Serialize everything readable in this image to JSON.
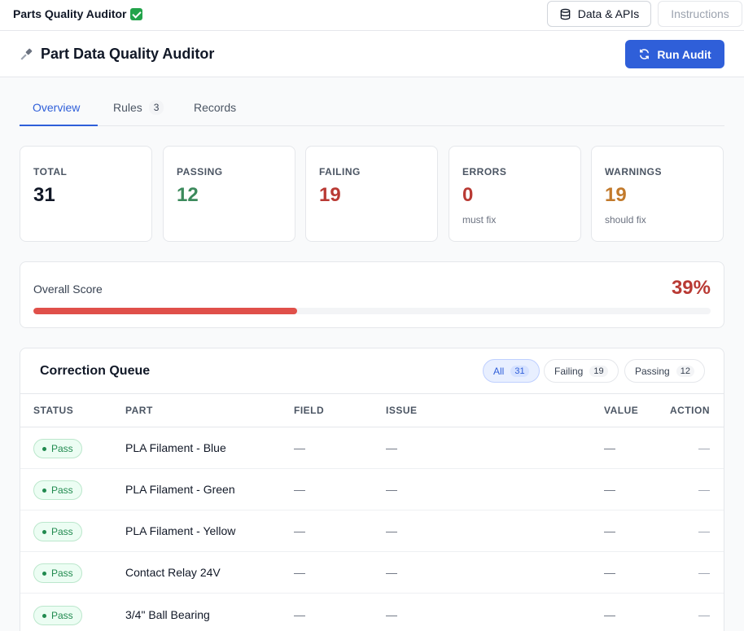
{
  "topbar": {
    "app_title": "Parts Quality Auditor",
    "data_button": "Data & APIs",
    "instructions_button": "Instructions"
  },
  "header": {
    "title": "Part Data Quality Auditor",
    "run_button": "Run Audit"
  },
  "tabs": [
    {
      "label": "Overview",
      "active": true
    },
    {
      "label": "Rules",
      "count": "3"
    },
    {
      "label": "Records"
    }
  ],
  "stats": {
    "total": {
      "label": "TOTAL",
      "value": "31"
    },
    "passing": {
      "label": "PASSING",
      "value": "12"
    },
    "failing": {
      "label": "FAILING",
      "value": "19"
    },
    "errors": {
      "label": "ERRORS",
      "value": "0",
      "sub": "must fix"
    },
    "warnings": {
      "label": "WARNINGS",
      "value": "19",
      "sub": "should fix"
    }
  },
  "score": {
    "label": "Overall Score",
    "value": "39%",
    "fraction": 0.39
  },
  "queue": {
    "title": "Correction Queue",
    "filters": [
      {
        "label": "All",
        "count": "31",
        "active": true
      },
      {
        "label": "Failing",
        "count": "19"
      },
      {
        "label": "Passing",
        "count": "12"
      }
    ],
    "columns": {
      "status": "STATUS",
      "part": "PART",
      "field": "FIELD",
      "issue": "ISSUE",
      "value": "VALUE",
      "action": "ACTION"
    },
    "rows": [
      {
        "status": "Pass",
        "part": "PLA Filament - Blue",
        "field": "—",
        "issue": "—",
        "value": "—",
        "action": "—"
      },
      {
        "status": "Pass",
        "part": "PLA Filament - Green",
        "field": "—",
        "issue": "—",
        "value": "—",
        "action": "—"
      },
      {
        "status": "Pass",
        "part": "PLA Filament - Yellow",
        "field": "—",
        "issue": "—",
        "value": "—",
        "action": "—"
      },
      {
        "status": "Pass",
        "part": "Contact Relay 24V",
        "field": "—",
        "issue": "—",
        "value": "—",
        "action": "—"
      },
      {
        "status": "Pass",
        "part": "3/4\" Ball Bearing",
        "field": "—",
        "issue": "—",
        "value": "—",
        "action": "—"
      }
    ]
  },
  "colors": {
    "accent": "#2f5fd9",
    "pass": "#3c8a5c",
    "fail": "#b93a34",
    "warn": "#c27a2c",
    "score_fill": "#e0504a"
  }
}
